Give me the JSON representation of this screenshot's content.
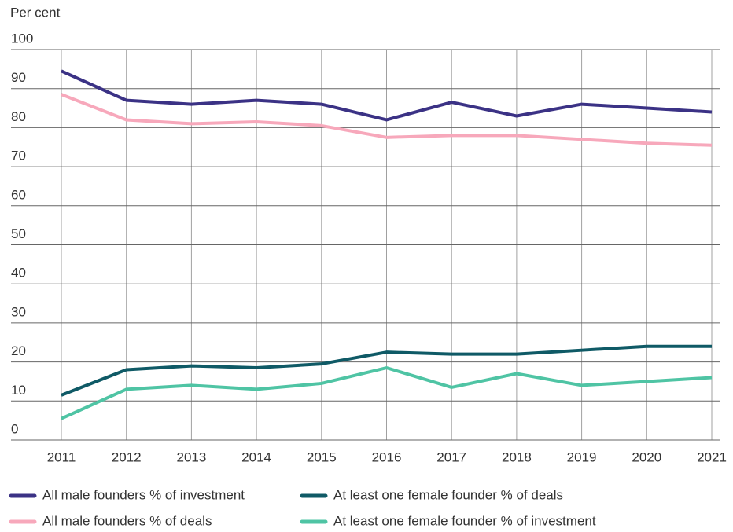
{
  "chart_data": {
    "type": "line",
    "ylabel": "Per cent",
    "categories": [
      "2011",
      "2012",
      "2013",
      "2014",
      "2015",
      "2016",
      "2017",
      "2018",
      "2019",
      "2020",
      "2021"
    ],
    "series": [
      {
        "name": "All male founders % of investment",
        "color": "#3b3285",
        "values": [
          94.5,
          87,
          86,
          87,
          86,
          82,
          86.5,
          83,
          86,
          85,
          84
        ]
      },
      {
        "name": "At least one female founder % of deals",
        "color": "#0f5a66",
        "values": [
          11.5,
          18,
          19,
          18.5,
          19.5,
          22.5,
          22,
          22,
          23,
          24,
          24
        ]
      },
      {
        "name": "All male founders % of deals",
        "color": "#f7a8bb",
        "values": [
          88.5,
          82,
          81,
          81.5,
          80.5,
          77.5,
          78,
          78,
          77,
          76,
          75.5
        ]
      },
      {
        "name": "At least one female founder % of investment",
        "color": "#4fc4a4",
        "values": [
          5.5,
          13,
          14,
          13,
          14.5,
          18.5,
          13.5,
          17,
          14,
          15,
          16
        ]
      }
    ],
    "ylim": [
      0,
      100
    ],
    "yticks": [
      0,
      10,
      20,
      30,
      40,
      50,
      60,
      70,
      80,
      90,
      100
    ],
    "grid": true
  }
}
